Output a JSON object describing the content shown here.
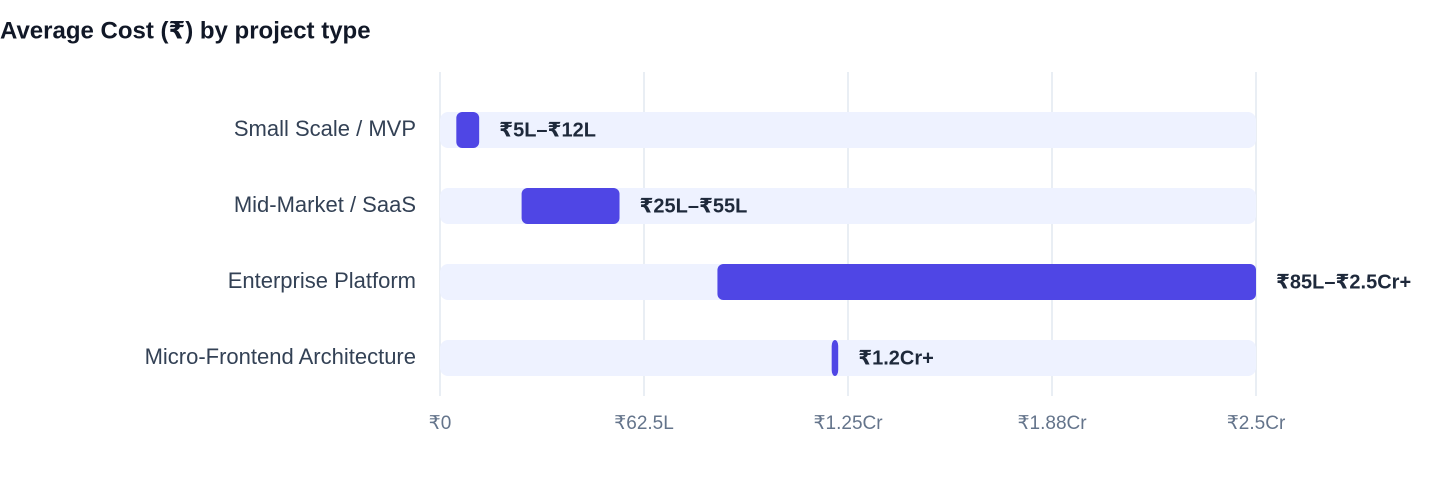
{
  "chart_data": {
    "type": "range-bar",
    "title": "Average Cost (₹) by project type",
    "categories": [
      "Small Scale / MVP",
      "Mid-Market / SaaS",
      "Enterprise Platform",
      "Micro-Frontend Architecture"
    ],
    "starts": [
      5,
      25,
      85,
      120
    ],
    "ends": [
      12,
      55,
      250,
      122
    ],
    "value_labels": [
      "₹5L–₹12L",
      "₹25L–₹55L",
      "₹85L–₹2.5Cr+",
      "₹1.2Cr+"
    ],
    "color": "#4f46e5",
    "track_color": "#eef2ff",
    "xlim": [
      0,
      250
    ],
    "xticks": [
      {
        "value": 0,
        "label": "₹0"
      },
      {
        "value": 62.5,
        "label": "₹62.5L"
      },
      {
        "value": 125,
        "label": "₹1.25Cr"
      },
      {
        "value": 187.5,
        "label": "₹1.88Cr"
      },
      {
        "value": 250,
        "label": "₹2.5Cr"
      }
    ],
    "grid": true
  }
}
